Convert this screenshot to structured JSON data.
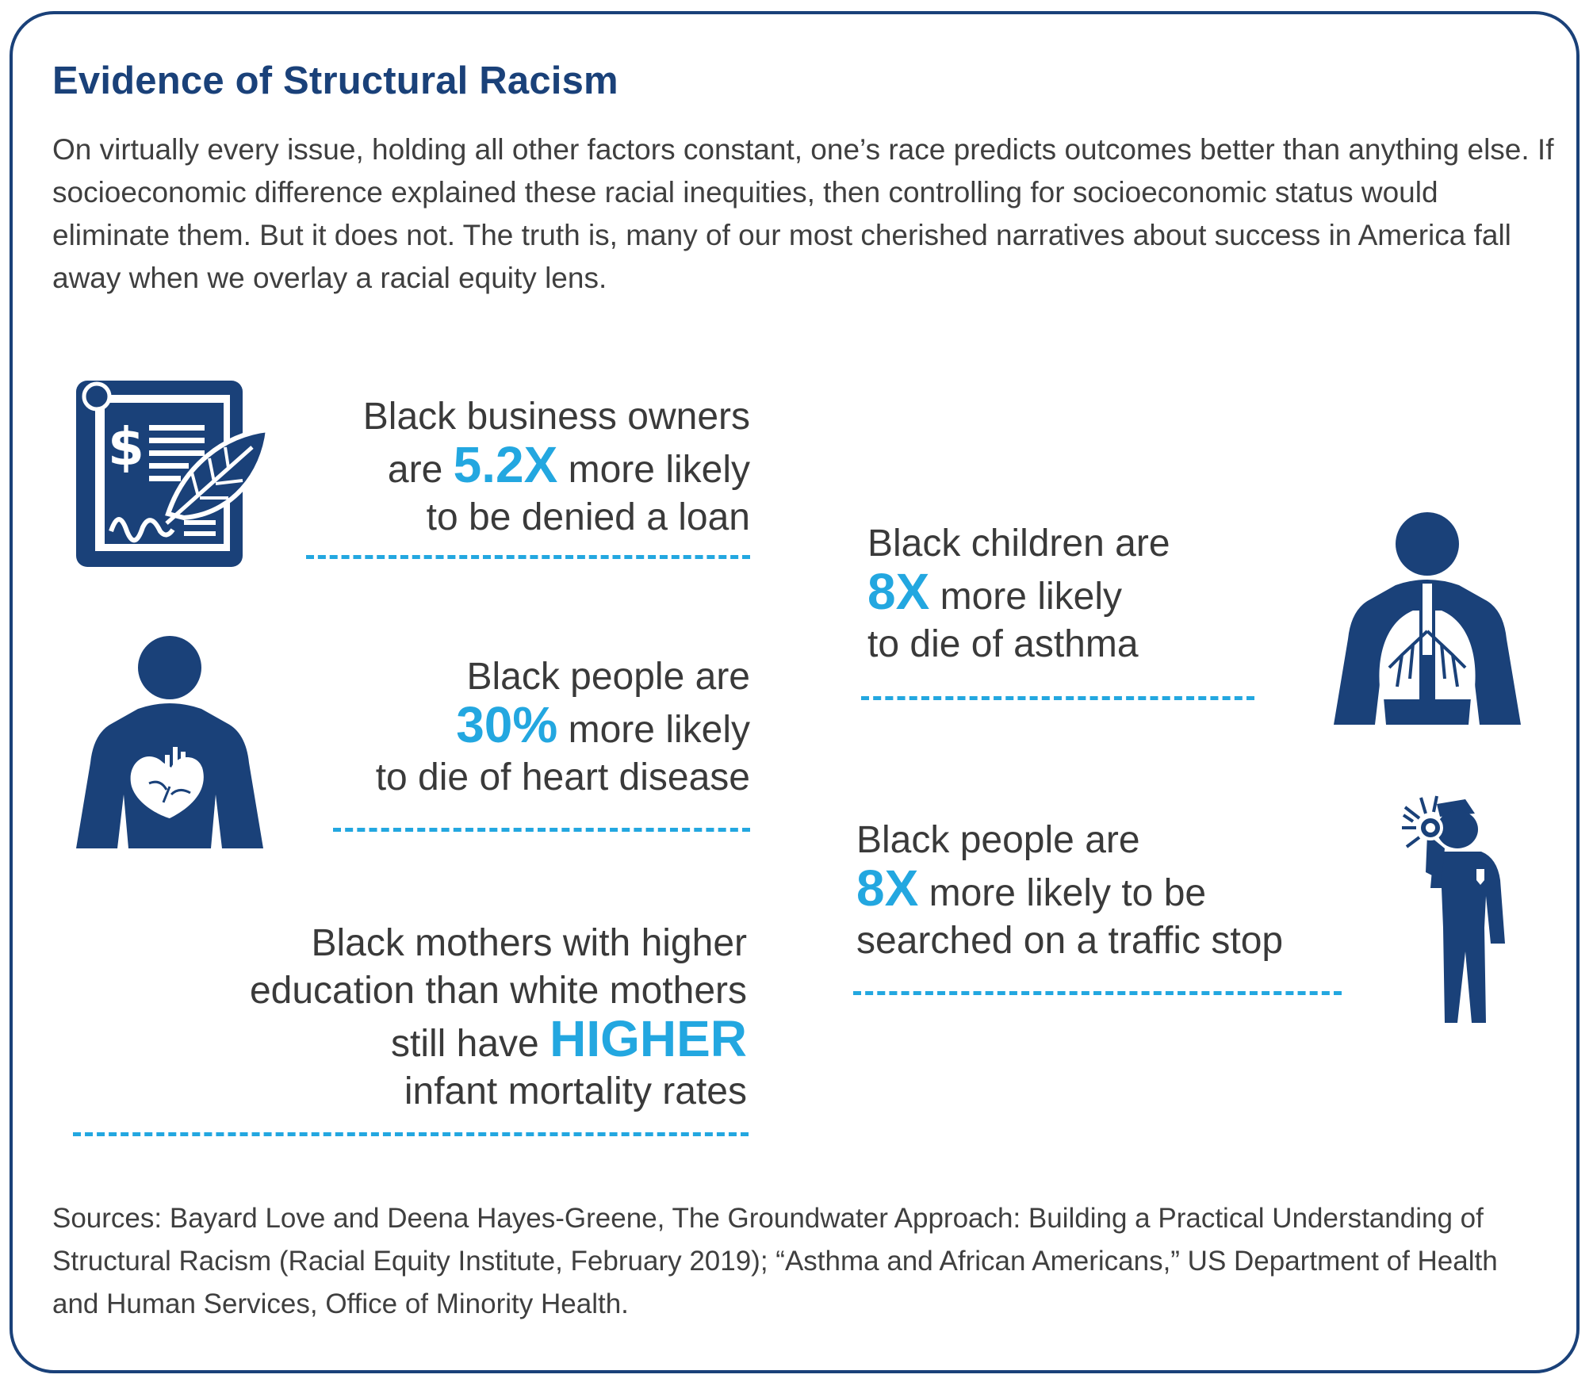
{
  "header": {
    "title": "Evidence of Structural Racism",
    "intro": "On virtually every issue, holding all other factors constant, one’s race predicts outcomes better than anything else. If socioeconomic difference explained these racial inequities, then controlling for socioeconomic status would eliminate them. But it does not. The truth is, many of our most cherished narratives about success in America fall away when we overlay a racial equity lens."
  },
  "stats": {
    "loan": {
      "line1": "Black business owners",
      "pre": "are ",
      "figure": "5.2X",
      "post": " more likely",
      "line3": "to be denied a loan"
    },
    "heart": {
      "line1": "Black people are",
      "figure": "30%",
      "post": " more likely",
      "line3": "to die of heart disease"
    },
    "mothers": {
      "line1": "Black mothers with higher",
      "line2": "education than white mothers",
      "pre": "still  have ",
      "figure": "HIGHER",
      "line4": "infant mortality rates"
    },
    "asthma": {
      "line1": "Black children are",
      "figure": "8X",
      "post": " more likely",
      "line3": "to die of asthma"
    },
    "traffic": {
      "line1": "Black people are",
      "figure": "8X",
      "post": " more likely to be",
      "line3": "searched on a traffic stop"
    }
  },
  "icons": {
    "loan": "loan-document-icon",
    "heart": "person-heart-icon",
    "asthma": "person-lungs-icon",
    "traffic": "police-officer-icon"
  },
  "sources": "Sources: Bayard Love and Deena Hayes-Greene, The Groundwater Approach: Building a Practical Understanding of Structural Racism (Racial Equity Institute, February 2019); “Asthma and African Americans,” US Department of Health and Human Services, Office of Minority Health.",
  "colors": {
    "navy": "#1a4179",
    "accent": "#23a7e0",
    "text": "#3d3d3d"
  }
}
